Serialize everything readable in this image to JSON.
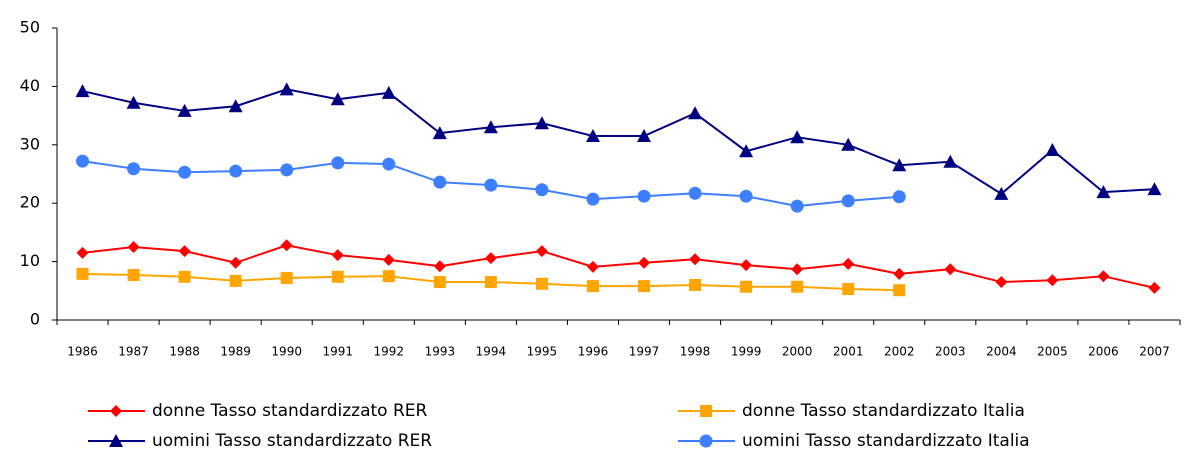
{
  "chart_data": {
    "type": "line",
    "categories": [
      "1986",
      "1987",
      "1988",
      "1989",
      "1990",
      "1991",
      "1992",
      "1993",
      "1994",
      "1995",
      "1996",
      "1997",
      "1998",
      "1999",
      "2000",
      "2001",
      "2002",
      "2003",
      "2004",
      "2005",
      "2006",
      "2007"
    ],
    "series": [
      {
        "name": "donne Tasso standardizzato RER",
        "color": "#ff0000",
        "marker": "diamond",
        "values": [
          11.5,
          12.5,
          11.8,
          9.8,
          12.8,
          11.1,
          10.3,
          9.2,
          10.6,
          11.8,
          9.1,
          9.8,
          10.4,
          9.4,
          8.7,
          9.6,
          7.9,
          8.7,
          6.5,
          6.8,
          7.5,
          5.5
        ]
      },
      {
        "name": "donne Tasso standardizzato Italia",
        "color": "#ffa500",
        "marker": "square",
        "values": [
          7.9,
          7.7,
          7.4,
          6.7,
          7.2,
          7.4,
          7.5,
          6.5,
          6.5,
          6.2,
          5.8,
          5.8,
          6.0,
          5.7,
          5.7,
          5.3,
          5.1,
          null,
          null,
          null,
          null,
          null
        ]
      },
      {
        "name": "uomini Tasso standardizzato RER",
        "color": "#000080",
        "marker": "triangle",
        "values": [
          39.2,
          37.2,
          35.8,
          36.6,
          39.5,
          37.8,
          38.9,
          32.0,
          33.0,
          33.7,
          31.5,
          31.5,
          35.4,
          28.9,
          31.3,
          30.0,
          26.5,
          27.1,
          21.6,
          29.1,
          21.9,
          22.4
        ]
      },
      {
        "name": "uomini Tasso standardizzato Italia",
        "color": "#3d7fff",
        "marker": "circle",
        "values": [
          27.2,
          25.9,
          25.3,
          25.5,
          25.7,
          26.9,
          26.7,
          23.6,
          23.1,
          22.3,
          20.7,
          21.2,
          21.7,
          21.2,
          19.5,
          20.4,
          21.1,
          null,
          null,
          null,
          null,
          null
        ]
      }
    ],
    "ylim": [
      0,
      50
    ],
    "yticks": [
      0,
      10,
      20,
      30,
      40,
      50
    ],
    "grid": false
  }
}
